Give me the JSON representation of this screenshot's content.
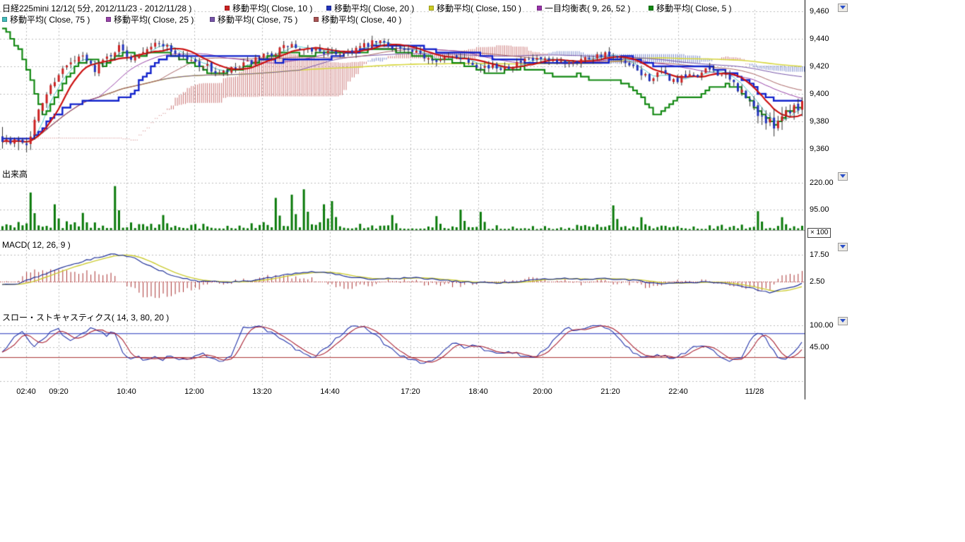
{
  "header": {
    "title": "日経225mini 12/12( 5分, 2012/11/23 - 2012/11/28 )",
    "row1_legends": [
      {
        "label": "移動平均( Close, 10 )",
        "color": "#cc2222"
      },
      {
        "label": "移動平均( Close, 20 )",
        "color": "#2233bb"
      },
      {
        "label": "移動平均( Close, 150 )",
        "color": "#cccc22"
      },
      {
        "label": "一目均衡表( 9, 26, 52 )",
        "color": "#9933aa"
      },
      {
        "label": "移動平均( Close, 5 )",
        "color": "#118811"
      }
    ],
    "row2_legends": [
      {
        "label": "移動平均( Close, 75 )",
        "color": "#44bbbb"
      },
      {
        "label": "移動平均( Close, 25 )",
        "color": "#9944aa"
      },
      {
        "label": "移動平均( Close, 75 )",
        "color": "#7755aa"
      },
      {
        "label": "移動平均( Close, 40 )",
        "color": "#aa5555"
      }
    ]
  },
  "panels": {
    "price": {
      "axis_labels": [
        "9,460",
        "9,440",
        "9,420",
        "9,400",
        "9,380",
        "9,360"
      ]
    },
    "volume": {
      "label": "出来高",
      "axis_labels": [
        "220.00",
        "95.00"
      ],
      "multiplier": "× 100"
    },
    "macd": {
      "label": "MACD( 12, 26, 9 )",
      "axis_labels": [
        "17.50",
        "2.50"
      ]
    },
    "stoch": {
      "label": "スロー・ストキャスティクス( 14, 3, 80, 20 )",
      "axis_labels": [
        "100.00",
        "45.00"
      ]
    }
  },
  "x_axis_labels": [
    "02:40",
    "09:20",
    "10:40",
    "12:00",
    "13:20",
    "14:40",
    "17:20",
    "18:40",
    "20:00",
    "21:20",
    "22:40",
    "11/28"
  ],
  "chart_data": {
    "type": "candlestick",
    "title": "日経225mini 12/12 5分足 2012/11/23 - 2012/11/28",
    "panels": [
      "price+moving-averages+ichimoku",
      "volume",
      "macd",
      "slow-stochastics"
    ],
    "price_tick_values": [
      9460,
      9440,
      9420,
      9400,
      9380,
      9360
    ],
    "price_axis_range": [
      9350,
      9468
    ],
    "x_tick_labels": [
      "02:40",
      "09:20",
      "10:40",
      "12:00",
      "13:20",
      "14:40",
      "17:20",
      "18:40",
      "20:00",
      "21:20",
      "22:40",
      "11/28"
    ],
    "seed": 7,
    "candle_count": 200,
    "price_close_path": [
      [
        0,
        9370
      ],
      [
        0.012,
        9362
      ],
      [
        0.02,
        9368
      ],
      [
        0.03,
        9366
      ],
      [
        0.04,
        9380
      ],
      [
        0.055,
        9400
      ],
      [
        0.07,
        9415
      ],
      [
        0.085,
        9422
      ],
      [
        0.1,
        9427
      ],
      [
        0.115,
        9418
      ],
      [
        0.13,
        9426
      ],
      [
        0.145,
        9434
      ],
      [
        0.16,
        9426
      ],
      [
        0.18,
        9434
      ],
      [
        0.2,
        9437
      ],
      [
        0.215,
        9430
      ],
      [
        0.235,
        9424
      ],
      [
        0.255,
        9420
      ],
      [
        0.27,
        9414
      ],
      [
        0.29,
        9418
      ],
      [
        0.315,
        9424
      ],
      [
        0.34,
        9430
      ],
      [
        0.36,
        9436
      ],
      [
        0.375,
        9430
      ],
      [
        0.39,
        9433
      ],
      [
        0.41,
        9429
      ],
      [
        0.43,
        9431
      ],
      [
        0.45,
        9434
      ],
      [
        0.47,
        9438
      ],
      [
        0.49,
        9434
      ],
      [
        0.51,
        9430
      ],
      [
        0.53,
        9427
      ],
      [
        0.55,
        9425
      ],
      [
        0.57,
        9428
      ],
      [
        0.59,
        9422
      ],
      [
        0.61,
        9419
      ],
      [
        0.63,
        9420
      ],
      [
        0.65,
        9423
      ],
      [
        0.67,
        9425
      ],
      [
        0.69,
        9422
      ],
      [
        0.71,
        9424
      ],
      [
        0.73,
        9426
      ],
      [
        0.75,
        9429
      ],
      [
        0.765,
        9426
      ],
      [
        0.78,
        9421
      ],
      [
        0.795,
        9416
      ],
      [
        0.81,
        9411
      ],
      [
        0.825,
        9415
      ],
      [
        0.84,
        9409
      ],
      [
        0.855,
        9412
      ],
      [
        0.87,
        9414
      ],
      [
        0.885,
        9418
      ],
      [
        0.9,
        9414
      ],
      [
        0.915,
        9407
      ],
      [
        0.93,
        9396
      ],
      [
        0.945,
        9387
      ],
      [
        0.96,
        9377
      ],
      [
        0.972,
        9384
      ],
      [
        0.985,
        9390
      ],
      [
        1,
        9394
      ]
    ],
    "green_ma_path": [
      [
        0,
        9448
      ],
      [
        0.02,
        9432
      ],
      [
        0.035,
        9410
      ],
      [
        0.05,
        9384
      ],
      [
        0.065,
        9396
      ],
      [
        0.08,
        9412
      ],
      [
        0.095,
        9422
      ],
      [
        0.11,
        9426
      ],
      [
        0.125,
        9420
      ],
      [
        0.14,
        9427
      ],
      [
        0.155,
        9431
      ],
      [
        0.17,
        9427
      ],
      [
        0.19,
        9431
      ],
      [
        0.21,
        9429
      ],
      [
        0.23,
        9424
      ],
      [
        0.26,
        9415
      ],
      [
        0.29,
        9417
      ],
      [
        0.32,
        9424
      ],
      [
        0.35,
        9430
      ],
      [
        0.38,
        9428
      ],
      [
        0.41,
        9430
      ],
      [
        0.44,
        9429
      ],
      [
        0.47,
        9434
      ],
      [
        0.5,
        9430
      ],
      [
        0.53,
        9427
      ],
      [
        0.56,
        9424
      ],
      [
        0.59,
        9419
      ],
      [
        0.61,
        9414
      ],
      [
        0.63,
        9417
      ],
      [
        0.65,
        9419
      ],
      [
        0.67,
        9417
      ],
      [
        0.7,
        9411
      ],
      [
        0.72,
        9414
      ],
      [
        0.74,
        9409
      ],
      [
        0.76,
        9411
      ],
      [
        0.78,
        9407
      ],
      [
        0.8,
        9396
      ],
      [
        0.815,
        9384
      ],
      [
        0.83,
        9391
      ],
      [
        0.845,
        9397
      ],
      [
        0.865,
        9397
      ],
      [
        0.885,
        9404
      ],
      [
        0.905,
        9407
      ],
      [
        0.92,
        9404
      ],
      [
        0.935,
        9394
      ],
      [
        0.95,
        9384
      ],
      [
        0.965,
        9377
      ],
      [
        0.98,
        9387
      ],
      [
        1,
        9391
      ]
    ],
    "volume_axis": {
      "tick_values": [
        220,
        95
      ],
      "multiplier": 100
    },
    "volume_envelope": [
      [
        0,
        55
      ],
      [
        0.08,
        45
      ],
      [
        0.15,
        40
      ],
      [
        0.22,
        30
      ],
      [
        0.3,
        35
      ],
      [
        0.38,
        45
      ],
      [
        0.45,
        35
      ],
      [
        0.52,
        28
      ],
      [
        0.6,
        26
      ],
      [
        0.68,
        22
      ],
      [
        0.76,
        30
      ],
      [
        0.84,
        24
      ],
      [
        0.92,
        28
      ],
      [
        1,
        40
      ]
    ],
    "volume_spikes": [
      [
        0.037,
        175
      ],
      [
        0.066,
        120
      ],
      [
        0.1,
        80
      ],
      [
        0.14,
        205
      ],
      [
        0.2,
        70
      ],
      [
        0.342,
        150
      ],
      [
        0.36,
        165
      ],
      [
        0.377,
        190
      ],
      [
        0.4,
        120
      ],
      [
        0.412,
        135
      ],
      [
        0.487,
        70
      ],
      [
        0.544,
        65
      ],
      [
        0.574,
        95
      ],
      [
        0.6,
        85
      ],
      [
        0.763,
        115
      ],
      [
        0.8,
        60
      ],
      [
        0.947,
        88
      ],
      [
        0.974,
        60
      ]
    ],
    "macd_axis_ticks": [
      17.5,
      2.5
    ],
    "macd_path": [
      [
        0,
        0.5
      ],
      [
        0.02,
        1.5
      ],
      [
        0.05,
        6
      ],
      [
        0.08,
        11
      ],
      [
        0.11,
        15
      ],
      [
        0.14,
        18
      ],
      [
        0.165,
        15.5
      ],
      [
        0.19,
        10
      ],
      [
        0.22,
        5
      ],
      [
        0.25,
        2.5
      ],
      [
        0.28,
        2.2
      ],
      [
        0.31,
        3
      ],
      [
        0.34,
        5
      ],
      [
        0.37,
        7.5
      ],
      [
        0.4,
        8
      ],
      [
        0.43,
        5.5
      ],
      [
        0.46,
        3.8
      ],
      [
        0.49,
        4.2
      ],
      [
        0.52,
        4.6
      ],
      [
        0.55,
        3.2
      ],
      [
        0.58,
        2.2
      ],
      [
        0.61,
        1.8
      ],
      [
        0.64,
        2.2
      ],
      [
        0.67,
        3.6
      ],
      [
        0.7,
        4.6
      ],
      [
        0.73,
        3.6
      ],
      [
        0.76,
        4.2
      ],
      [
        0.79,
        3.2
      ],
      [
        0.82,
        1.2
      ],
      [
        0.85,
        1.8
      ],
      [
        0.88,
        2.4
      ],
      [
        0.9,
        1.4
      ],
      [
        0.92,
        0.2
      ],
      [
        0.94,
        -1.5
      ],
      [
        0.96,
        -3.5
      ],
      [
        0.98,
        -1.5
      ],
      [
        1,
        1.5
      ]
    ],
    "stoch_axis_ticks": [
      100,
      45
    ],
    "stoch_levels": {
      "upper": 80,
      "lower": 20
    },
    "stoch_k_path": [
      [
        0,
        30
      ],
      [
        0.01,
        60
      ],
      [
        0.025,
        85
      ],
      [
        0.04,
        45
      ],
      [
        0.055,
        75
      ],
      [
        0.07,
        90
      ],
      [
        0.085,
        60
      ],
      [
        0.1,
        80
      ],
      [
        0.115,
        95
      ],
      [
        0.13,
        72
      ],
      [
        0.14,
        85
      ],
      [
        0.15,
        35
      ],
      [
        0.16,
        15
      ],
      [
        0.17,
        25
      ],
      [
        0.18,
        10
      ],
      [
        0.19,
        22
      ],
      [
        0.2,
        14
      ],
      [
        0.21,
        26
      ],
      [
        0.22,
        10
      ],
      [
        0.235,
        16
      ],
      [
        0.25,
        30
      ],
      [
        0.26,
        18
      ],
      [
        0.27,
        10
      ],
      [
        0.285,
        18
      ],
      [
        0.3,
        92
      ],
      [
        0.315,
        100
      ],
      [
        0.33,
        88
      ],
      [
        0.345,
        72
      ],
      [
        0.36,
        50
      ],
      [
        0.375,
        30
      ],
      [
        0.39,
        20
      ],
      [
        0.405,
        45
      ],
      [
        0.42,
        70
      ],
      [
        0.435,
        95
      ],
      [
        0.45,
        98
      ],
      [
        0.465,
        80
      ],
      [
        0.48,
        50
      ],
      [
        0.495,
        28
      ],
      [
        0.51,
        15
      ],
      [
        0.525,
        6
      ],
      [
        0.54,
        14
      ],
      [
        0.553,
        40
      ],
      [
        0.565,
        55
      ],
      [
        0.578,
        44
      ],
      [
        0.59,
        50
      ],
      [
        0.605,
        38
      ],
      [
        0.62,
        26
      ],
      [
        0.635,
        34
      ],
      [
        0.65,
        24
      ],
      [
        0.665,
        20
      ],
      [
        0.68,
        40
      ],
      [
        0.695,
        75
      ],
      [
        0.708,
        95
      ],
      [
        0.72,
        85
      ],
      [
        0.733,
        96
      ],
      [
        0.747,
        100
      ],
      [
        0.76,
        88
      ],
      [
        0.775,
        58
      ],
      [
        0.79,
        32
      ],
      [
        0.805,
        18
      ],
      [
        0.82,
        26
      ],
      [
        0.835,
        18
      ],
      [
        0.85,
        26
      ],
      [
        0.862,
        45
      ],
      [
        0.875,
        50
      ],
      [
        0.888,
        36
      ],
      [
        0.9,
        22
      ],
      [
        0.912,
        10
      ],
      [
        0.925,
        18
      ],
      [
        0.937,
        72
      ],
      [
        0.948,
        85
      ],
      [
        0.958,
        55
      ],
      [
        0.968,
        25
      ],
      [
        0.978,
        10
      ],
      [
        0.988,
        25
      ],
      [
        1,
        58
      ]
    ],
    "colors": {
      "up_candle": "#cc2222",
      "down_candle": "#2233bb",
      "wick": "#333333",
      "ma10": "#cc1111",
      "ma20_kijun": "#1122cc",
      "ma5_green": "#118811",
      "ma150": "#d8d840",
      "ma5_cyan": "#55cccc",
      "ma25": "#9944aa",
      "ma75": "#7755aa",
      "ma40": "#aa6666",
      "cloud_up": "#cc7777",
      "cloud_down": "#7788cc",
      "volume": "#0a7a0a",
      "macd_line": "#223399",
      "macd_signal": "#cccc33",
      "macd_hist": "#aa3333",
      "macd_zero": "#cc3333",
      "stoch_k": "#2233aa",
      "stoch_d": "#aa2233",
      "stoch_upper_line": "#2233bb",
      "stoch_lower_line": "#aa3333",
      "grid": "#bbbbbb"
    }
  }
}
